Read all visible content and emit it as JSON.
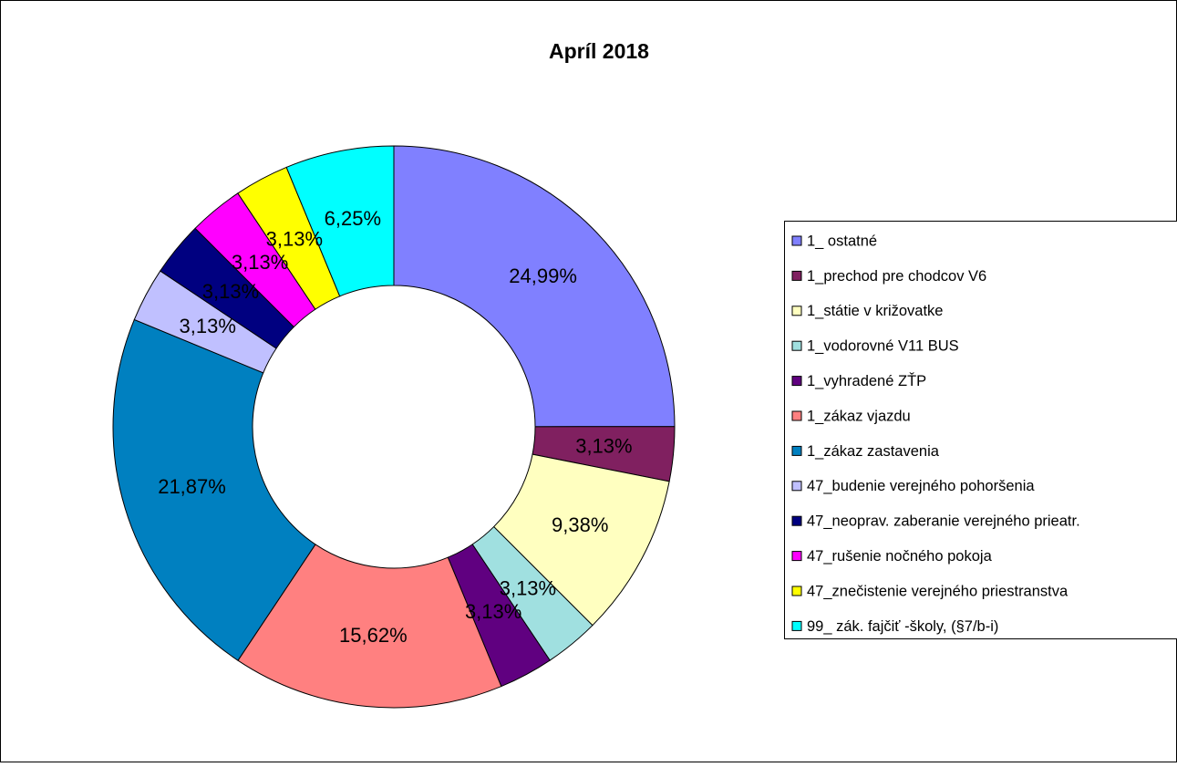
{
  "chart_data": {
    "type": "donut",
    "title": "Apríl 2018",
    "categories": [
      "1_ ostatné",
      "1_prechod pre chodcov V6",
      "1_státie v križovatke",
      "1_vodorovné V11 BUS",
      "1_vyhradené ZŤP",
      "1_zákaz vjazdu",
      "1_zákaz zastavenia",
      "47_budenie verejného pohoršenia",
      "47_neoprav. zaberanie verejného prieatr.",
      "47_rušenie nočného pokoja",
      "47_znečistenie verejného priestranstva",
      "99_ zák. fajčiť -školy, (§7/b-i)"
    ],
    "values": [
      24.99,
      3.13,
      9.38,
      3.13,
      3.13,
      15.62,
      21.87,
      3.13,
      3.13,
      3.13,
      3.13,
      6.25
    ],
    "value_labels": [
      "24,99%",
      "3,13%",
      "9,38%",
      "3,13%",
      "3,13%",
      "15,62%",
      "21,87%",
      "3,13%",
      "3,13%",
      "3,13%",
      "3,13%",
      "6,25%"
    ],
    "colors": [
      "#8080ff",
      "#802060",
      "#ffffc0",
      "#a0e0e0",
      "#600080",
      "#ff8080",
      "#0080c0",
      "#c0c0ff",
      "#000080",
      "#ff00ff",
      "#ffff00",
      "#00ffff"
    ],
    "legend": "right"
  }
}
